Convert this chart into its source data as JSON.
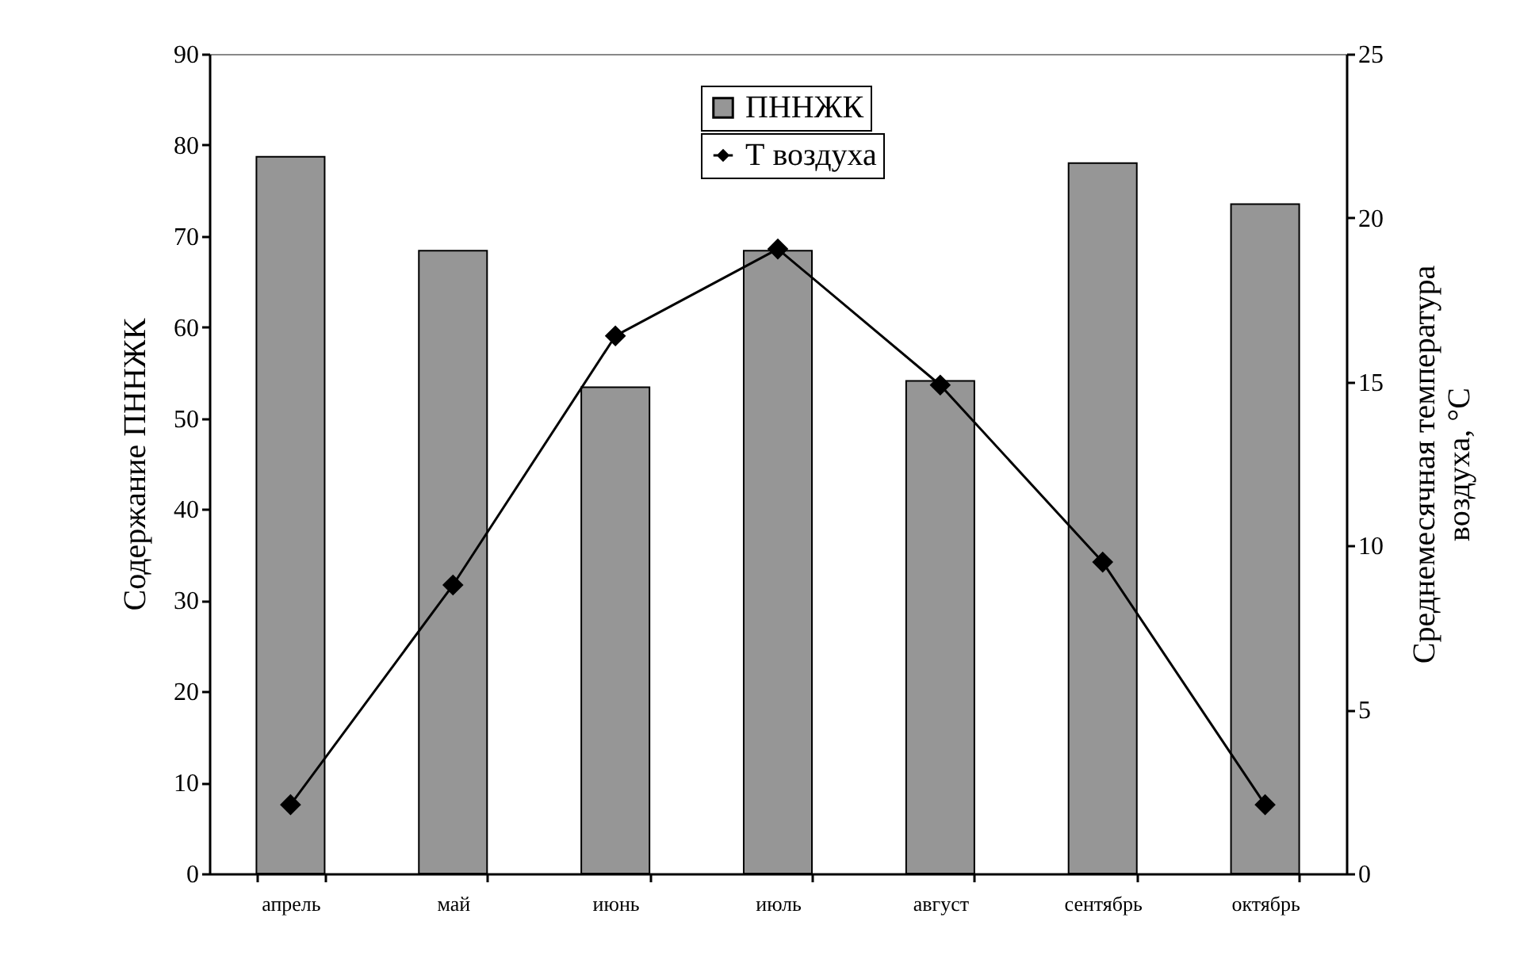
{
  "chart_data": {
    "type": "bar",
    "categories": [
      "апрель",
      "май",
      "июнь",
      "июль",
      "август",
      "сентябрь",
      "октябрь"
    ],
    "series": [
      {
        "name": "ПННЖК",
        "color": "#969696",
        "values": [
          78.7,
          68.4,
          53.4,
          68.4,
          54.1,
          78.0,
          73.5
        ]
      },
      {
        "name": "Т воздуха",
        "type": "line",
        "axis": "y2",
        "color": "#000000",
        "marker": "diamond",
        "values": [
          2.1,
          8.8,
          16.4,
          19.05,
          14.9,
          9.5,
          2.1
        ]
      }
    ],
    "ylabel": "Содержание ПННЖК",
    "y2label": "Среднемесячная температура\nвоздуха, °C",
    "ylim": [
      0,
      90
    ],
    "yticks": [
      0,
      10,
      20,
      30,
      40,
      50,
      60,
      70,
      80,
      90
    ],
    "y2lim": [
      0,
      25
    ],
    "y2ticks": [
      0,
      5,
      10,
      15,
      20,
      25
    ],
    "legend": "top"
  }
}
